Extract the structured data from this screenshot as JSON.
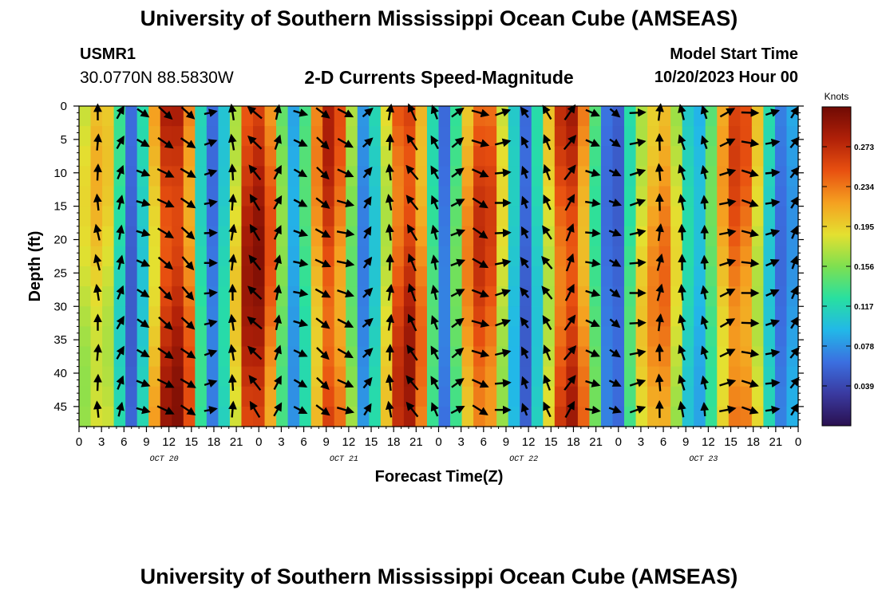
{
  "header": {
    "title": "University of Southern Mississippi Ocean Cube (AMSEAS)",
    "footer_title": "University of Southern Mississippi Ocean Cube (AMSEAS)",
    "station_id": "USMR1",
    "coordinates": "30.0770N  88.5830W",
    "model_start_label": "Model Start Time",
    "model_start_value": "10/20/2023 Hour 00"
  },
  "chart_data": {
    "type": "heatmap",
    "title": "2-D Currents Speed-Magnitude",
    "xlabel": "Forecast Time(Z)",
    "ylabel": "Depth (ft)",
    "x_ticks": [
      "0",
      "3",
      "6",
      "9",
      "12",
      "15",
      "18",
      "21",
      "0",
      "3",
      "6",
      "9",
      "12",
      "15",
      "18",
      "21",
      "0",
      "3",
      "6",
      "9",
      "12",
      "15",
      "18",
      "21",
      "0",
      "3",
      "6",
      "9",
      "12",
      "15",
      "18",
      "21",
      "0"
    ],
    "x_range_hours": [
      0,
      96
    ],
    "date_labels": [
      {
        "label": "OCT 20",
        "hour": 12
      },
      {
        "label": "OCT 21",
        "hour": 36
      },
      {
        "label": "OCT 22",
        "hour": 60
      },
      {
        "label": "OCT 23",
        "hour": 84
      }
    ],
    "y_ticks": [
      "0",
      "5",
      "10",
      "15",
      "20",
      "25",
      "30",
      "35",
      "40",
      "45"
    ],
    "y_range_ft": [
      0,
      48
    ],
    "colorbar": {
      "unit": "Knots",
      "ticks": [
        "0.273",
        "0.234",
        "0.195",
        "0.156",
        "0.117",
        "0.078",
        "0.039"
      ],
      "range": [
        0.0,
        0.312
      ],
      "colors": [
        "#2a1050",
        "#3a3aa0",
        "#3b6fe0",
        "#22b8e8",
        "#28e0a0",
        "#7ee050",
        "#e4e030",
        "#f5a020",
        "#e85010",
        "#b02008",
        "#700a04"
      ]
    },
    "speed_profile_knots": [
      0.19,
      0.21,
      0.2,
      0.13,
      0.06,
      0.12,
      0.22,
      0.29,
      0.3,
      0.25,
      0.13,
      0.07,
      0.12,
      0.2,
      0.29,
      0.3,
      0.25,
      0.16,
      0.09,
      0.14,
      0.23,
      0.28,
      0.25,
      0.17,
      0.08,
      0.12,
      0.2,
      0.27,
      0.29,
      0.24,
      0.14,
      0.07,
      0.15,
      0.23,
      0.27,
      0.26,
      0.19,
      0.11,
      0.06,
      0.12,
      0.2,
      0.27,
      0.29,
      0.24,
      0.15,
      0.07,
      0.06,
      0.14,
      0.2,
      0.23,
      0.24,
      0.19,
      0.12,
      0.1,
      0.15,
      0.22,
      0.26,
      0.25,
      0.2,
      0.12,
      0.07,
      0.09
    ],
    "vector_direction_deg": [
      350,
      355,
      0,
      20,
      90,
      115,
      120,
      125,
      130,
      130,
      110,
      80,
      10,
      0,
      340,
      320,
      350,
      20,
      70,
      110,
      125,
      125,
      110,
      80,
      40,
      20,
      0,
      340,
      330,
      325,
      340,
      20,
      60,
      100,
      115,
      115,
      80,
      20,
      330,
      320,
      330,
      355,
      30,
      75,
      105,
      115,
      120,
      115,
      80,
      20,
      5,
      350,
      345,
      350,
      0,
      70,
      95,
      100,
      105,
      75,
      40,
      30
    ]
  }
}
